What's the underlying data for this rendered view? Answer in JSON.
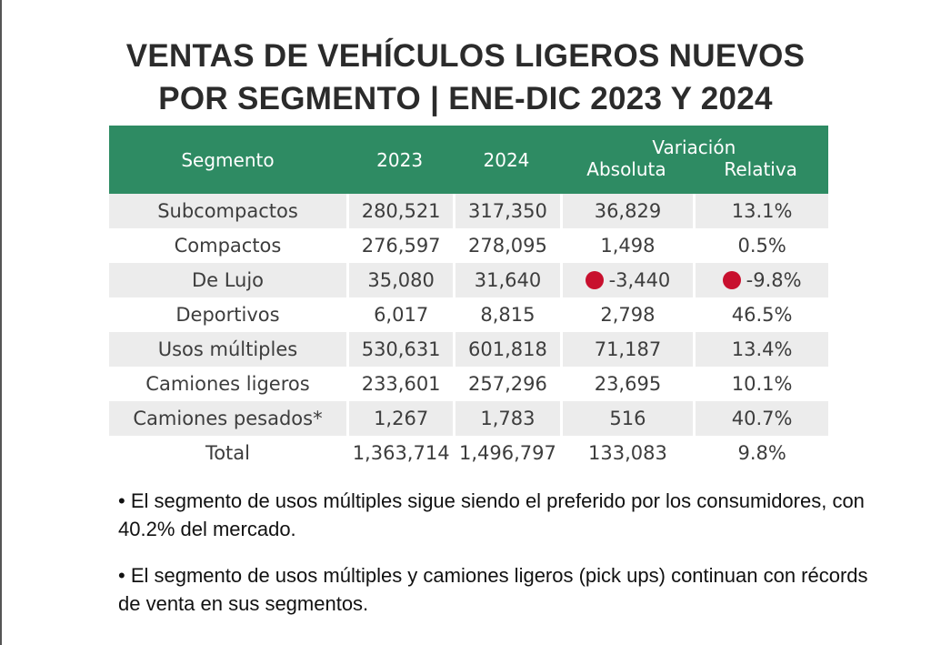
{
  "title": {
    "line1": "VENTAS DE VEHÍCULOS LIGEROS NUEVOS",
    "line2": "POR SEGMENTO | ENE-DIC 2023 Y 2024"
  },
  "table": {
    "headers": {
      "segment": "Segmento",
      "year1": "2023",
      "year2": "2024",
      "variation": "Variación",
      "absolute": "Absoluta",
      "relative": "Relativa"
    },
    "rows": [
      {
        "segment": "Subcompactos",
        "y2023": "280,521",
        "y2024": "317,350",
        "absolute": "36,829",
        "relative": "13.1%",
        "negative": false
      },
      {
        "segment": "Compactos",
        "y2023": "276,597",
        "y2024": "278,095",
        "absolute": "1,498",
        "relative": "0.5%",
        "negative": false
      },
      {
        "segment": "De Lujo",
        "y2023": "35,080",
        "y2024": "31,640",
        "absolute": "-3,440",
        "relative": "-9.8%",
        "negative": true
      },
      {
        "segment": "Deportivos",
        "y2023": "6,017",
        "y2024": "8,815",
        "absolute": "2,798",
        "relative": "46.5%",
        "negative": false
      },
      {
        "segment": "Usos múltiples",
        "y2023": "530,631",
        "y2024": "601,818",
        "absolute": "71,187",
        "relative": "13.4%",
        "negative": false
      },
      {
        "segment": "Camiones ligeros",
        "y2023": "233,601",
        "y2024": "257,296",
        "absolute": "23,695",
        "relative": "10.1%",
        "negative": false
      },
      {
        "segment": "Camiones pesados*",
        "y2023": "1,267",
        "y2024": "1,783",
        "absolute": "516",
        "relative": "40.7%",
        "negative": false
      },
      {
        "segment": "Total",
        "y2023": "1,363,714",
        "y2024": "1,496,797",
        "absolute": "133,083",
        "relative": "9.8%",
        "negative": false
      }
    ]
  },
  "notes": [
    "• El segmento de usos múltiples sigue siendo el preferido por los consumidores, con 40.2% del mercado.",
    "• El segmento de usos múltiples y camiones ligeros (pick ups) continuan con récords de venta en sus segmentos."
  ],
  "colors": {
    "header_green": "#2e8b63",
    "row_shade": "#ececec",
    "negative_dot": "#c8102e"
  },
  "icons": {
    "negative_indicator": "red-dot-icon"
  }
}
